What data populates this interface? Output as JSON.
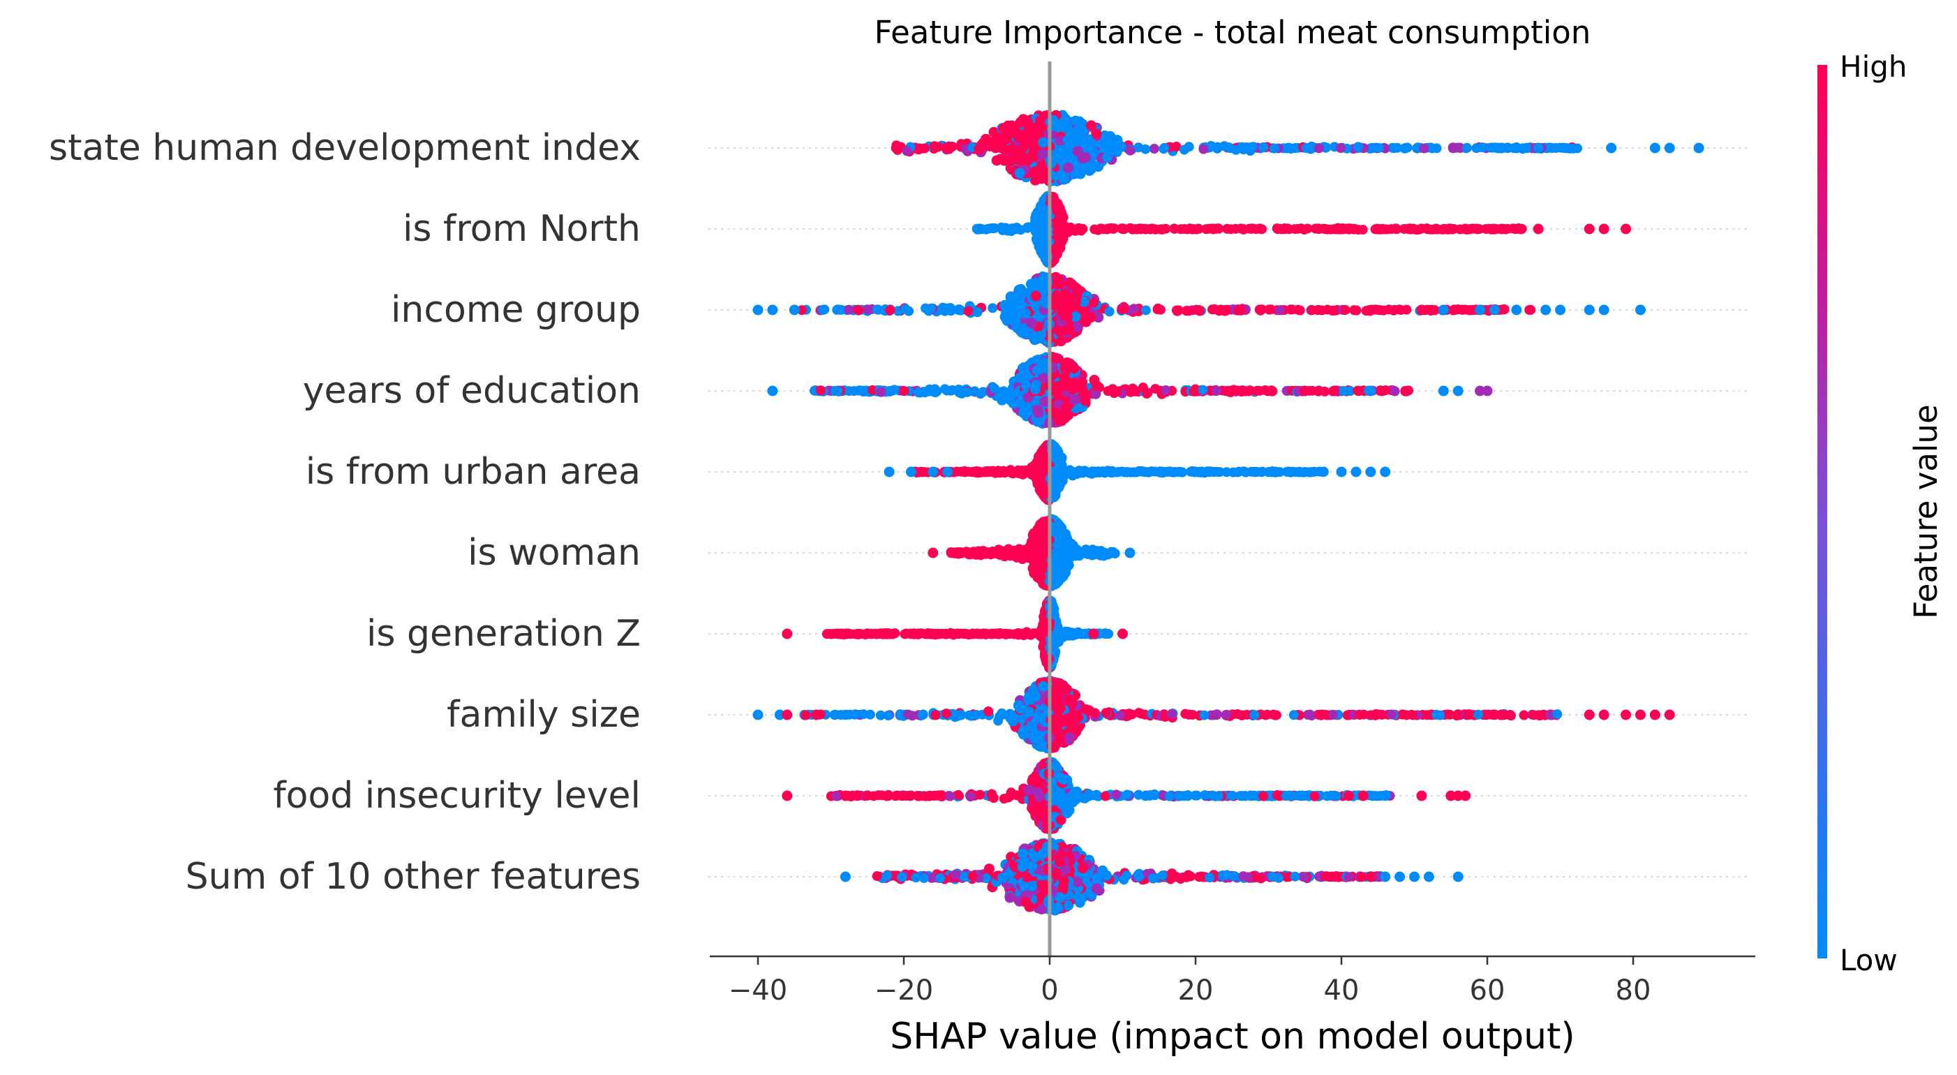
{
  "chart_data": {
    "type": "scatter",
    "subtype": "shap-beeswarm",
    "title": "Feature Importance - total meat consumption",
    "xlabel": "SHAP value (impact on model output)",
    "xlim": [
      -46,
      95
    ],
    "xticks": [
      -40,
      -20,
      0,
      20,
      40,
      60,
      80
    ],
    "xtick_labels": [
      "−40",
      "−20",
      "0",
      "20",
      "40",
      "60",
      "80"
    ],
    "grid": false,
    "colors": {
      "low": "#008bfb",
      "high": "#ff0052",
      "mid": "#a22ab7",
      "zero_line": "#999999",
      "row_guide": "#d6d6d6",
      "axis": "#333333",
      "text": "#333333"
    },
    "colorbar": {
      "label": "Feature value",
      "high_label": "High",
      "low_label": "Low",
      "placement": "right"
    },
    "features": [
      {
        "name": "state human development index",
        "min": -25,
        "max": 89,
        "hi_side": "neg",
        "mixed": true,
        "core_width": 9,
        "core_height": 0.42,
        "outliers": [
          {
            "x": 67,
            "c": "low"
          },
          {
            "x": 77,
            "c": "low"
          },
          {
            "x": 83,
            "c": "low"
          },
          {
            "x": 85,
            "c": "low"
          },
          {
            "x": 89,
            "c": "low"
          },
          {
            "x": 62,
            "c": "low"
          },
          {
            "x": 64,
            "c": "low"
          }
        ]
      },
      {
        "name": "is from North",
        "min": -12,
        "max": 79,
        "hi_side": "pos",
        "mixed": false,
        "core_width": 2,
        "core_height": 0.42,
        "outliers": [
          {
            "x": 53,
            "c": "high"
          },
          {
            "x": 57,
            "c": "high"
          },
          {
            "x": 62,
            "c": "high"
          },
          {
            "x": 67,
            "c": "high"
          },
          {
            "x": 74,
            "c": "high"
          },
          {
            "x": 76,
            "c": "high"
          },
          {
            "x": 79,
            "c": "high"
          }
        ]
      },
      {
        "name": "income group",
        "min": -40,
        "max": 81,
        "hi_side": "pos",
        "mixed": true,
        "core_width": 6,
        "core_height": 0.42,
        "outliers": [
          {
            "x": -40,
            "c": "low"
          },
          {
            "x": -38,
            "c": "low"
          },
          {
            "x": -35,
            "c": "low"
          },
          {
            "x": 51,
            "c": "high"
          },
          {
            "x": 54,
            "c": "low"
          },
          {
            "x": 59,
            "c": "low"
          },
          {
            "x": 61,
            "c": "low"
          },
          {
            "x": 64,
            "c": "low"
          },
          {
            "x": 68,
            "c": "low"
          },
          {
            "x": 70,
            "c": "low"
          },
          {
            "x": 74,
            "c": "low"
          },
          {
            "x": 76,
            "c": "low"
          },
          {
            "x": 81,
            "c": "low"
          }
        ]
      },
      {
        "name": "years of education",
        "min": -38,
        "max": 60,
        "hi_side": "pos",
        "mixed": true,
        "core_width": 6,
        "core_height": 0.42,
        "outliers": [
          {
            "x": -38,
            "c": "low"
          },
          {
            "x": 35,
            "c": "high"
          },
          {
            "x": 39,
            "c": "high"
          },
          {
            "x": 44,
            "c": "low"
          },
          {
            "x": 54,
            "c": "low"
          },
          {
            "x": 56,
            "c": "low"
          },
          {
            "x": 59,
            "c": "mid"
          },
          {
            "x": 60,
            "c": "mid"
          }
        ]
      },
      {
        "name": "is from urban area",
        "min": -22,
        "max": 46,
        "hi_side": "neg",
        "mixed": false,
        "core_width": 2,
        "core_height": 0.35,
        "outliers": [
          {
            "x": -22,
            "c": "low"
          },
          {
            "x": -19,
            "c": "low"
          },
          {
            "x": -16,
            "c": "low"
          },
          {
            "x": -14,
            "c": "low"
          },
          {
            "x": 40,
            "c": "low"
          },
          {
            "x": 42,
            "c": "low"
          },
          {
            "x": 44,
            "c": "low"
          },
          {
            "x": 46,
            "c": "low"
          }
        ]
      },
      {
        "name": "is woman",
        "min": -16,
        "max": 11,
        "hi_side": "neg",
        "mixed": false,
        "core_width": 3,
        "core_height": 0.42,
        "outliers": [
          {
            "x": -16,
            "c": "high"
          },
          {
            "x": 11,
            "c": "low"
          }
        ]
      },
      {
        "name": "is generation Z",
        "min": -36,
        "max": 10,
        "hi_side": "neg",
        "mixed": false,
        "core_width": 1,
        "core_height": 0.42,
        "outliers": [
          {
            "x": -36,
            "c": "high"
          },
          {
            "x": 10,
            "c": "high"
          },
          {
            "x": 6,
            "c": "high"
          }
        ]
      },
      {
        "name": "family size",
        "min": -40,
        "max": 85,
        "hi_side": "pos",
        "mixed": true,
        "core_width": 5,
        "core_height": 0.42,
        "outliers": [
          {
            "x": -40,
            "c": "low"
          },
          {
            "x": -37,
            "c": "low"
          },
          {
            "x": -36,
            "c": "high"
          },
          {
            "x": -32,
            "c": "high"
          },
          {
            "x": 62,
            "c": "high"
          },
          {
            "x": 74,
            "c": "high"
          },
          {
            "x": 76,
            "c": "high"
          },
          {
            "x": 79,
            "c": "high"
          },
          {
            "x": 81,
            "c": "high"
          },
          {
            "x": 83,
            "c": "high"
          },
          {
            "x": 85,
            "c": "high"
          }
        ]
      },
      {
        "name": "food insecurity level",
        "min": -36,
        "max": 57,
        "hi_side": "neg",
        "mixed": true,
        "core_width": 3,
        "core_height": 0.42,
        "outliers": [
          {
            "x": -36,
            "c": "high"
          },
          {
            "x": -28,
            "c": "high"
          },
          {
            "x": 41,
            "c": "high"
          },
          {
            "x": 43,
            "c": "high"
          },
          {
            "x": 51,
            "c": "high"
          },
          {
            "x": 55,
            "c": "high"
          },
          {
            "x": 56,
            "c": "high"
          },
          {
            "x": 57,
            "c": "high"
          }
        ]
      },
      {
        "name": "Sum of 10 other features",
        "min": -28,
        "max": 56,
        "hi_side": "mixed",
        "mixed": true,
        "core_width": 8,
        "core_height": 0.42,
        "outliers": [
          {
            "x": -28,
            "c": "low"
          },
          {
            "x": 44,
            "c": "high"
          },
          {
            "x": 46,
            "c": "low"
          },
          {
            "x": 48,
            "c": "low"
          },
          {
            "x": 50,
            "c": "low"
          },
          {
            "x": 52,
            "c": "low"
          },
          {
            "x": 56,
            "c": "low"
          }
        ]
      }
    ]
  }
}
